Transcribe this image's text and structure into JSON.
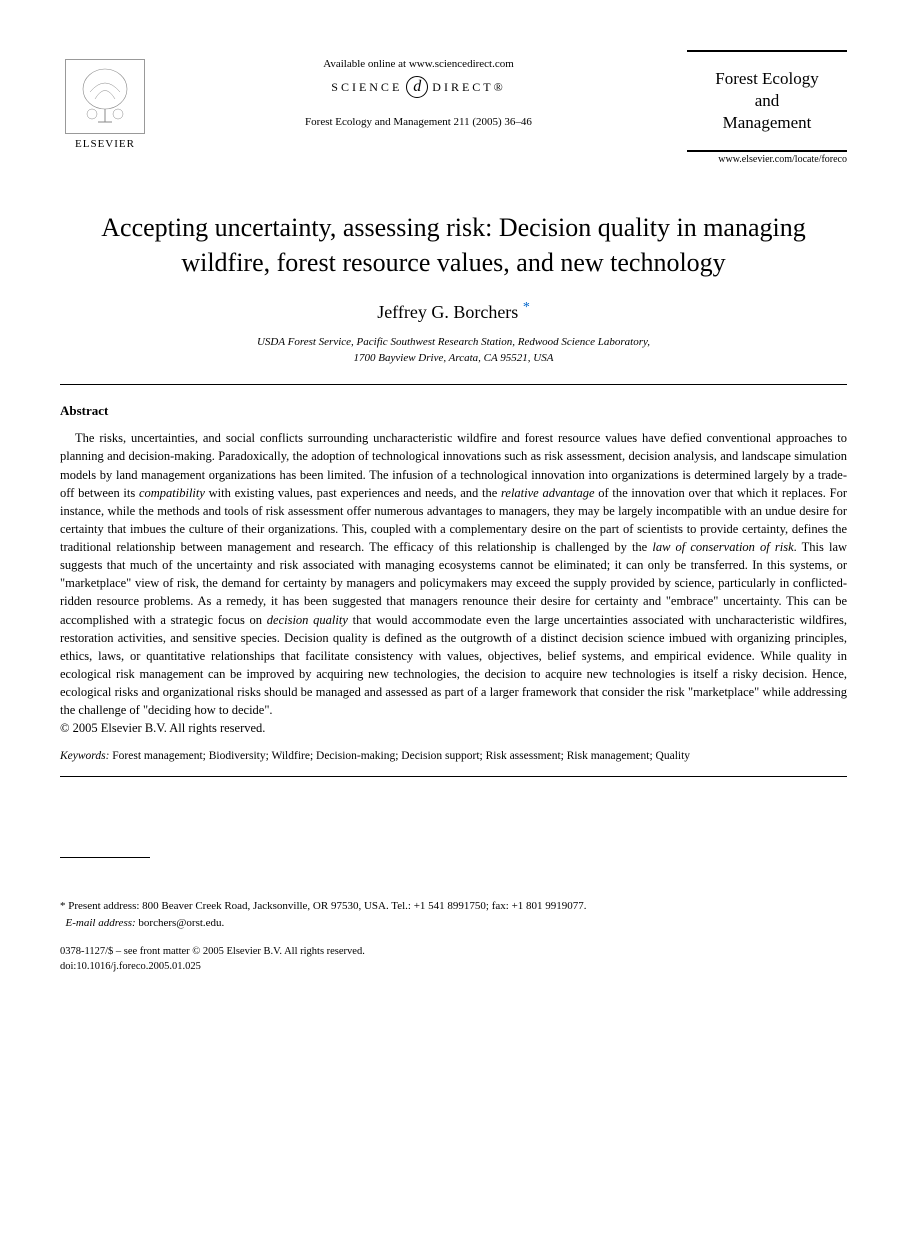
{
  "header": {
    "elsevier_label": "ELSEVIER",
    "available_text": "Available online at www.sciencedirect.com",
    "science_label_left": "SCIENCE",
    "science_label_right": "DIRECT®",
    "sd_glyph": "d",
    "citation": "Forest Ecology and Management 211 (2005) 36–46",
    "journal_name_line1": "Forest Ecology",
    "journal_name_line2": "and",
    "journal_name_line3": "Management",
    "journal_url": "www.elsevier.com/locate/foreco"
  },
  "article": {
    "title": "Accepting uncertainty, assessing risk: Decision quality in managing wildfire, forest resource values, and new technology",
    "author": "Jeffrey G. Borchers",
    "author_marker": "*",
    "affiliation_line1": "USDA Forest Service, Pacific Southwest Research Station, Redwood Science Laboratory,",
    "affiliation_line2": "1700 Bayview Drive, Arcata, CA 95521, USA"
  },
  "abstract": {
    "heading": "Abstract",
    "body_html": "The risks, uncertainties, and social conflicts surrounding uncharacteristic wildfire and forest resource values have defied conventional approaches to planning and decision-making. Paradoxically, the adoption of technological innovations such as risk assessment, decision analysis, and landscape simulation models by land management organizations has been limited. The infusion of a technological innovation into organizations is determined largely by a trade-off between its <em>compatibility</em> with existing values, past experiences and needs, and the <em>relative advantage</em> of the innovation over that which it replaces. For instance, while the methods and tools of risk assessment offer numerous advantages to managers, they may be largely incompatible with an undue desire for certainty that imbues the culture of their organizations. This, coupled with a complementary desire on the part of scientists to provide certainty, defines the traditional relationship between management and research. The efficacy of this relationship is challenged by the <em>law of conservation of risk</em>. This law suggests that much of the uncertainty and risk associated with managing ecosystems cannot be eliminated; it can only be transferred. In this systems, or \"marketplace\" view of risk, the demand for certainty by managers and policymakers may exceed the supply provided by science, particularly in conflicted-ridden resource problems. As a remedy, it has been suggested that managers renounce their desire for certainty and \"embrace\" uncertainty. This can be accomplished with a strategic focus on <em>decision quality</em> that would accommodate even the large uncertainties associated with uncharacteristic wildfires, restoration activities, and sensitive species. Decision quality is defined as the outgrowth of a distinct decision science imbued with organizing principles, ethics, laws, or quantitative relationships that facilitate consistency with values, objectives, belief systems, and empirical evidence. While quality in ecological risk management can be improved by acquiring new technologies, the decision to acquire new technologies is itself a risky decision. Hence, ecological risks and organizational risks should be managed and assessed as part of a larger framework that consider the risk \"marketplace\" while addressing the challenge of \"deciding how to decide\".",
    "copyright": "© 2005 Elsevier B.V. All rights reserved."
  },
  "keywords": {
    "label": "Keywords:",
    "list": "Forest management; Biodiversity; Wildfire; Decision-making; Decision support; Risk assessment; Risk management; Quality"
  },
  "footnote": {
    "marker": "*",
    "address": "Present address: 800 Beaver Creek Road, Jacksonville, OR 97530, USA. Tel.: +1 541 8991750; fax: +1 801 9919077.",
    "email_label": "E-mail address:",
    "email": "borchers@orst.edu."
  },
  "footer": {
    "issn_line": "0378-1127/$ – see front matter © 2005 Elsevier B.V. All rights reserved.",
    "doi_line": "doi:10.1016/j.foreco.2005.01.025"
  },
  "colors": {
    "text": "#000000",
    "link": "#0066cc",
    "background": "#ffffff"
  },
  "typography": {
    "title_fontsize": 26,
    "author_fontsize": 18,
    "body_fontsize": 12.5,
    "affiliation_fontsize": 11,
    "footnote_fontsize": 11,
    "footer_fontsize": 10.5
  }
}
